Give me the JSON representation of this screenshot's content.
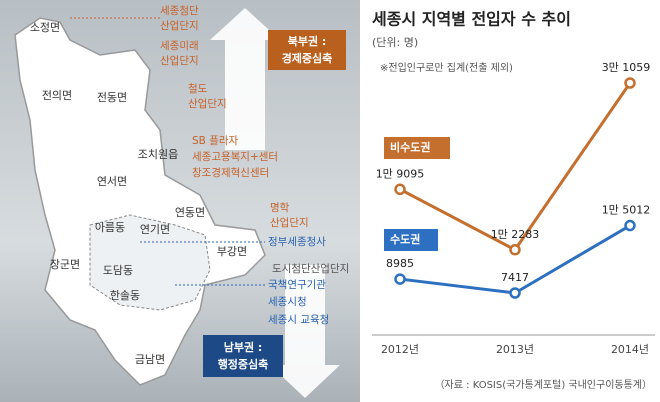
{
  "map": {
    "regions": [
      "소정면",
      "전의면",
      "전동면",
      "조치원읍",
      "연서면",
      "연동면",
      "아름동",
      "연기면",
      "부강면",
      "장군면",
      "도담동",
      "한솔동",
      "금남면"
    ],
    "annotations": [
      [
        "세종첨단",
        "산업단지"
      ],
      [
        "세종미래",
        "산업단지"
      ],
      [
        "철도",
        "산업단지"
      ],
      [
        "SB 플라자",
        "세종고용복지+센터",
        "창조경제혁신센터"
      ],
      [
        "명학",
        "산업단지"
      ],
      [
        "정부세종청사"
      ],
      [
        "도시첨단산업단지"
      ],
      [
        "국책연구기관"
      ],
      [
        "세종시청",
        "세종시 교육청"
      ]
    ],
    "north_label": [
      "북부권 :",
      "경제중심축"
    ],
    "south_label": [
      "남부권 :",
      "행정중심축"
    ]
  },
  "chart_data": {
    "type": "line",
    "title": "세종시 지역별 전입자 수 추이",
    "subtitle": "(단위: 명)",
    "note": "※전입인구로만 집계(전출 제외)",
    "source": "（자료 : KOSIS(국가통계포털) 국내인구이동통계）",
    "categories": [
      "2012년",
      "2013년",
      "2014년"
    ],
    "series": [
      {
        "name": "비수도권",
        "color": "#c46f2e",
        "values": [
          19095,
          12283,
          31059
        ],
        "value_labels": [
          "1만 9095",
          "1만 2283",
          "3만 1059"
        ]
      },
      {
        "name": "수도권",
        "color": "#2d6fc0",
        "values": [
          8985,
          7417,
          15012
        ],
        "value_labels": [
          "8985",
          "7417",
          "1만 5012"
        ]
      }
    ]
  }
}
